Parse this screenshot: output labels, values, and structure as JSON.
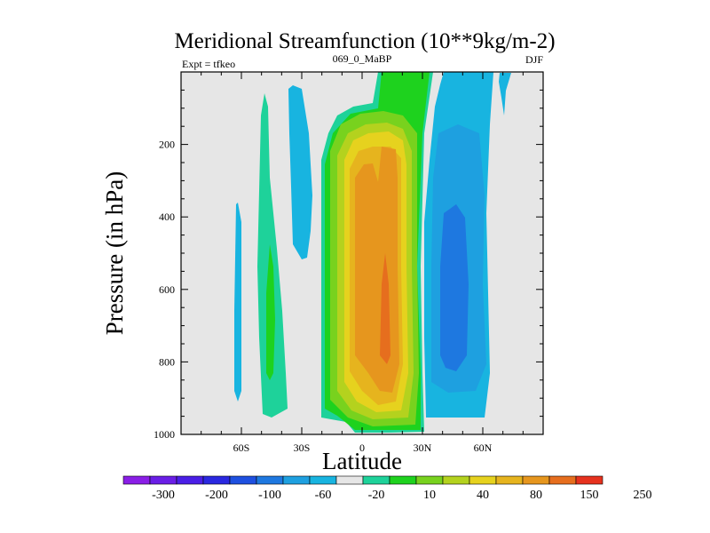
{
  "chart_data": {
    "type": "heatmap",
    "title": "Meridional Streamfunction (10**9kg/m-2)",
    "left_string": "Expt = tfkeo",
    "center_string": "069_0_MaBP",
    "right_string": "DJF",
    "xlabel": "Latitude",
    "ylabel": "Pressure (in hPa)",
    "xlim": [
      -90,
      90
    ],
    "ylim": [
      0,
      1000
    ],
    "y_reversed": true,
    "grid": false,
    "x_ticks": [
      {
        "value": -60,
        "label": "60S"
      },
      {
        "value": -30,
        "label": "30S"
      },
      {
        "value": 0,
        "label": "0"
      },
      {
        "value": 30,
        "label": "30N"
      },
      {
        "value": 60,
        "label": "60N"
      }
    ],
    "y_ticks": [
      {
        "value": 200,
        "label": "200"
      },
      {
        "value": 400,
        "label": "400"
      },
      {
        "value": 600,
        "label": "600"
      },
      {
        "value": 800,
        "label": "800"
      },
      {
        "value": 1000,
        "label": "1000"
      }
    ],
    "colorbar": {
      "colors": [
        "#8a1ee6",
        "#6a1ee6",
        "#4a1ee6",
        "#2a28e0",
        "#1e50e0",
        "#1e78e0",
        "#1ea0e0",
        "#18b4e0",
        "#e6e6e6",
        "#1ed29a",
        "#1ed21e",
        "#78d21e",
        "#b4d21e",
        "#e6d21e",
        "#e6b41e",
        "#e6961e",
        "#e66e1e",
        "#e6321e"
      ],
      "labels": [
        "-300",
        "-200",
        "-100",
        "-60",
        "-20",
        "10",
        "40",
        "80",
        "150",
        "250"
      ]
    },
    "contour_fields": [
      {
        "name": "southern-cell",
        "level_colors": [
          "#1ed29a",
          "#1ed21e",
          "#78d21e",
          "#b4d21e",
          "#e6d21e",
          "#e6b41e",
          "#e6961e",
          "#e66e1e"
        ],
        "peak_lat": 10,
        "peak_p": 700,
        "peak_value": 220
      },
      {
        "name": "northern-cell",
        "level_colors": [
          "#18b4e0",
          "#1ea0e0"
        ],
        "peak_lat": 42,
        "peak_p": 600,
        "peak_value": -40
      },
      {
        "name": "southern-ferrel-cell",
        "level_colors": [
          "#1ed29a",
          "#1ed21e"
        ],
        "peak_lat": -45,
        "peak_p": 650,
        "peak_value": 20
      },
      {
        "name": "southern-midlat-negative",
        "level_colors": [
          "#18b4e0"
        ],
        "peak_lat": -33,
        "peak_p": 250,
        "peak_value": -10
      },
      {
        "name": "southern-polar-negative",
        "level_colors": [
          "#18b4e0"
        ],
        "peak_lat": -63,
        "peak_p": 650,
        "peak_value": -10
      },
      {
        "name": "northern-polar-negative",
        "level_colors": [
          "#18b4e0"
        ],
        "peak_lat": 78,
        "peak_p": 50,
        "peak_value": -10
      }
    ]
  }
}
